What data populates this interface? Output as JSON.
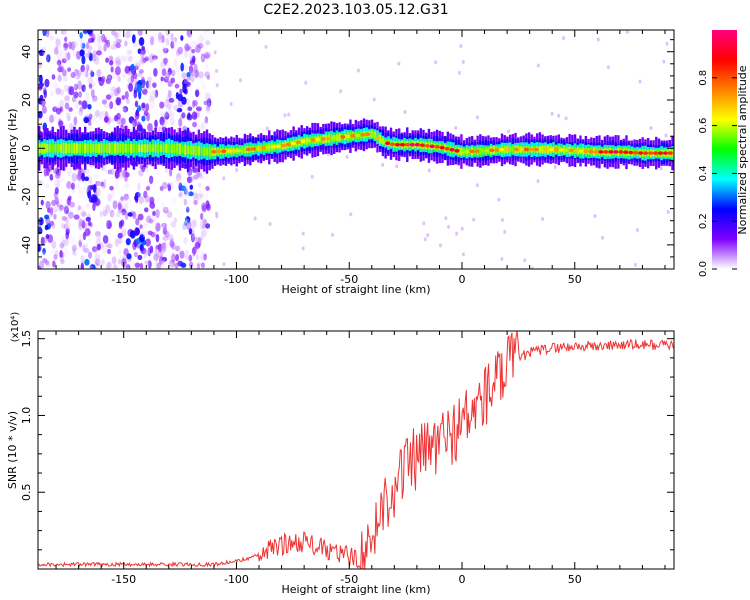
{
  "figure_title": "C2E2.2023.103.05.12.G31",
  "colorbar": {
    "label": "Normalized spectral amplitude",
    "ticks": [
      0.0,
      0.2,
      0.4,
      0.6,
      0.8
    ],
    "tick_labels": [
      "0.0",
      "0.2",
      "0.4",
      "0.6",
      "0.8"
    ],
    "stops": [
      "#ffffff",
      "#7f00ff",
      "#0000ff",
      "#00ffff",
      "#00ff00",
      "#ffff00",
      "#ff8000",
      "#ff0000",
      "#ff0080"
    ]
  },
  "chart_data": [
    {
      "type": "heatmap",
      "xlabel": "Height of straight line (km)",
      "ylabel": "Frequency (Hz)",
      "xlim": [
        -188,
        94
      ],
      "ylim": [
        -50,
        49
      ],
      "xticks": [
        -150,
        -100,
        -50,
        0,
        50
      ],
      "xtick_labels": [
        "-150",
        "-100",
        "-50",
        "0",
        "50"
      ],
      "yticks": [
        -40,
        -20,
        0,
        20,
        40
      ],
      "ytick_labels": [
        "-40",
        "-20",
        "0",
        "20",
        "40"
      ],
      "ridge": {
        "x": [
          -188,
          -160,
          -130,
          -112,
          -100,
          -90,
          -80,
          -70,
          -60,
          -50,
          -45,
          -40,
          -35,
          -30,
          -20,
          -10,
          0,
          10,
          20,
          30,
          40,
          50,
          60,
          70,
          80,
          94
        ],
        "y": [
          0,
          0,
          0,
          -1.5,
          -1,
          0,
          1,
          3,
          4,
          5,
          5.5,
          6,
          2.5,
          1.5,
          1.5,
          0.5,
          -1.5,
          -1,
          -0.5,
          -0.5,
          -0.5,
          -1,
          -1.5,
          -1.5,
          -2,
          -2
        ]
      },
      "noise_region_x": [
        -188,
        -112
      ]
    },
    {
      "type": "line",
      "xlabel": "Height of straight line (km)",
      "ylabel": "SNR (10 * v/v)",
      "y_multiplier": "(x10⁴)",
      "xlim": [
        -188,
        94
      ],
      "ylim": [
        0,
        1.55
      ],
      "xticks": [
        -150,
        -100,
        -50,
        0,
        50
      ],
      "xtick_labels": [
        "-150",
        "-100",
        "-50",
        "0",
        "50"
      ],
      "yticks": [
        0.5,
        1.0,
        1.5
      ],
      "ytick_labels": [
        "0.5",
        "1.0",
        "1.5"
      ],
      "color": "#ee3333",
      "trend": {
        "x": [
          -188,
          -140,
          -110,
          -100,
          -90,
          -80,
          -70,
          -60,
          -50,
          -42,
          -38,
          -34,
          -30,
          -25,
          -20,
          -15,
          -10,
          -5,
          0,
          5,
          10,
          15,
          20,
          25,
          30,
          40,
          50,
          60,
          70,
          80,
          94
        ],
        "y": [
          0.03,
          0.03,
          0.03,
          0.05,
          0.09,
          0.16,
          0.18,
          0.12,
          0.08,
          0.07,
          0.3,
          0.45,
          0.55,
          0.65,
          0.72,
          0.78,
          0.82,
          0.88,
          0.95,
          1.02,
          1.12,
          1.22,
          1.3,
          1.37,
          1.41,
          1.44,
          1.45,
          1.45,
          1.46,
          1.46,
          1.46
        ]
      }
    }
  ]
}
